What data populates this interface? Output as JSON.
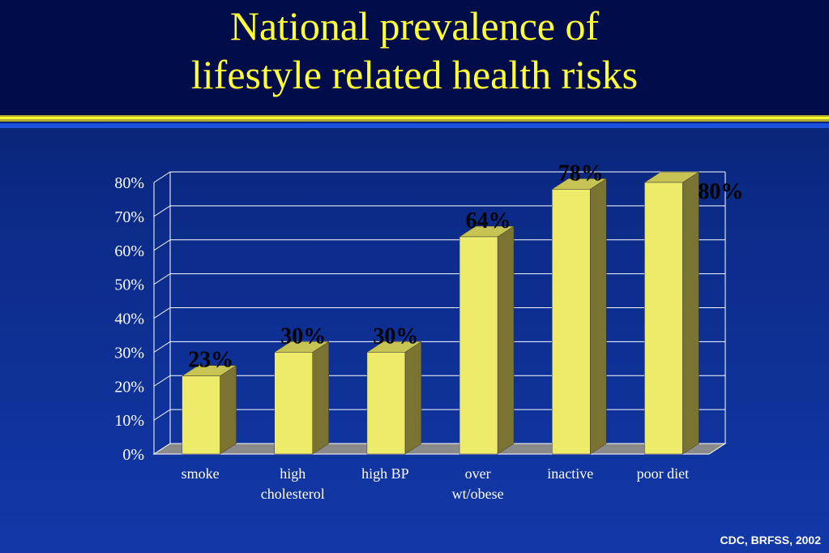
{
  "title": {
    "line1": "National prevalence of",
    "line2": "lifestyle related health risks"
  },
  "source": "CDC, BRFSS, 2002",
  "colors": {
    "title": "#ffff33",
    "bar_front": "#eeea6a",
    "bar_side": "#7b7332",
    "bar_top": "#c8c454",
    "floor": "#8a8a8a",
    "grid": "#ffffff"
  },
  "chart_data": {
    "type": "bar",
    "categories": [
      [
        "smoke"
      ],
      [
        "high",
        "cholesterol"
      ],
      [
        "high BP"
      ],
      [
        "over",
        "wt/obese"
      ],
      [
        "inactive"
      ],
      [
        "poor diet"
      ]
    ],
    "values": [
      23,
      30,
      30,
      64,
      78,
      80
    ],
    "data_labels": [
      "23%",
      "30%",
      "30%",
      "64%",
      "78%",
      "80%"
    ],
    "yticks": [
      "0%",
      "10%",
      "20%",
      "30%",
      "40%",
      "50%",
      "60%",
      "70%",
      "80%"
    ],
    "ylim": [
      0,
      80
    ],
    "grid": true,
    "legend": false,
    "style": "3d"
  }
}
